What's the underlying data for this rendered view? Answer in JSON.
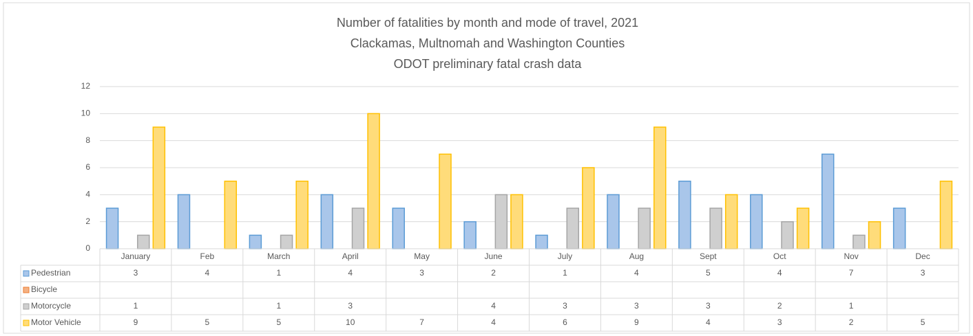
{
  "chart_data": {
    "type": "bar",
    "title": [
      "Number of fatalities by month and mode of travel, 2021",
      "Clackamas, Multnomah and Washington Counties",
      "ODOT preliminary fatal crash data"
    ],
    "categories": [
      "January",
      "Feb",
      "March",
      "April",
      "May",
      "June",
      "July",
      "Aug",
      "Sept",
      "Oct",
      "Nov",
      "Dec"
    ],
    "series": [
      {
        "name": "Pedestrian",
        "color": "#5b9bd5",
        "values": [
          3,
          4,
          1,
          4,
          3,
          2,
          1,
          4,
          5,
          4,
          7,
          3
        ]
      },
      {
        "name": "Bicycle",
        "color": "#ed7d31",
        "values": [
          null,
          null,
          null,
          null,
          null,
          null,
          null,
          null,
          null,
          null,
          null,
          null
        ]
      },
      {
        "name": "Motorcycle",
        "color": "#a5a5a5",
        "values": [
          1,
          null,
          1,
          3,
          null,
          4,
          3,
          3,
          3,
          2,
          1,
          null
        ]
      },
      {
        "name": "Motor Vehicle",
        "color": "#ffc000",
        "values": [
          9,
          5,
          5,
          10,
          7,
          4,
          6,
          9,
          4,
          3,
          2,
          5
        ]
      }
    ],
    "ylim": [
      0,
      12
    ],
    "yticks": [
      0,
      2,
      4,
      6,
      8,
      10,
      12
    ],
    "grid": true,
    "data_table": true
  }
}
